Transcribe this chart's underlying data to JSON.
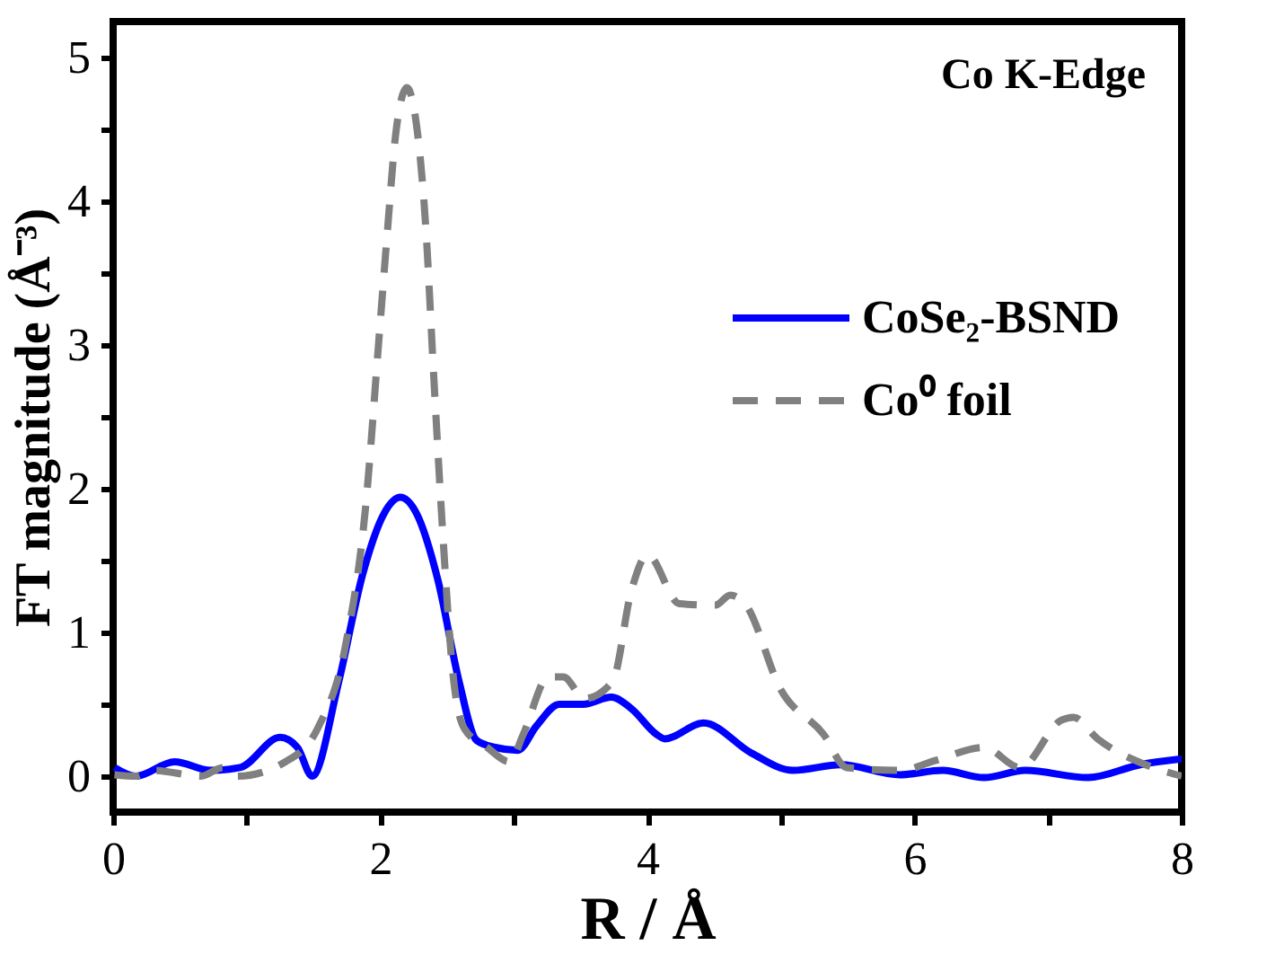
{
  "chart_data": {
    "type": "line",
    "xlabel": "R / Å",
    "ylabel": "FT magnitude (Å⁻³)",
    "annotations": [
      "Co K-Edge"
    ],
    "xlim": [
      0,
      8
    ],
    "ylim": [
      -0.25,
      5.25
    ],
    "xticks": [
      0,
      {
        "value": 1,
        "label": null
      },
      2,
      {
        "value": 3,
        "label": null
      },
      4,
      {
        "value": 5,
        "label": null
      },
      6,
      {
        "value": 7,
        "label": null
      },
      8
    ],
    "yticks": [
      0,
      {
        "value": 0.5,
        "label": null
      },
      1,
      {
        "value": 1.5,
        "label": null
      },
      2,
      {
        "value": 2.5,
        "label": null
      },
      3,
      {
        "value": 3.5,
        "label": null
      },
      4,
      {
        "value": 4.5,
        "label": null
      },
      5
    ],
    "legend": "right",
    "grid": false,
    "series": [
      {
        "name": "CoSe₂-BSND",
        "color": "#0000ff",
        "line_style": "solid",
        "x": [
          0.01,
          0.17,
          0.46,
          0.73,
          0.95,
          1.25,
          1.38,
          1.49,
          1.69,
          1.87,
          2.03,
          2.15,
          2.27,
          2.43,
          2.59,
          2.72,
          2.86,
          3.03,
          3.17,
          3.34,
          3.52,
          3.73,
          3.88,
          4.07,
          4.13,
          4.42,
          4.78,
          5.09,
          5.45,
          5.89,
          6.21,
          6.52,
          6.83,
          7.3,
          7.69,
          8.0
        ],
        "values": [
          0.06,
          0.0,
          0.1,
          0.04,
          0.06,
          0.27,
          0.2,
          0.0,
          0.66,
          1.41,
          1.83,
          1.94,
          1.83,
          1.37,
          0.66,
          0.25,
          0.2,
          0.18,
          0.35,
          0.5,
          0.5,
          0.55,
          0.47,
          0.29,
          0.26,
          0.37,
          0.16,
          0.04,
          0.08,
          0.01,
          0.04,
          -0.01,
          0.04,
          -0.01,
          0.08,
          0.12
        ]
      },
      {
        "name": "Co⁰ foil",
        "color": "#808080",
        "line_style": "dashed",
        "x": [
          0.01,
          0.17,
          0.3,
          0.66,
          0.82,
          0.93,
          1.29,
          1.53,
          1.74,
          1.89,
          1.99,
          2.05,
          2.12,
          2.2,
          2.27,
          2.34,
          2.4,
          2.47,
          2.54,
          2.63,
          2.8,
          2.97,
          3.07,
          3.26,
          3.37,
          3.53,
          3.74,
          3.88,
          4.0,
          4.24,
          4.51,
          4.62,
          4.73,
          5.0,
          5.32,
          5.49,
          5.89,
          6.16,
          6.52,
          6.79,
          7.1,
          7.19,
          7.37,
          7.73,
          8.0
        ],
        "values": [
          0.01,
          0.0,
          0.04,
          0.0,
          0.06,
          0.0,
          0.1,
          0.33,
          0.91,
          1.87,
          3.04,
          3.75,
          4.5,
          4.79,
          4.54,
          3.83,
          2.79,
          1.66,
          0.75,
          0.33,
          0.2,
          0.1,
          0.29,
          0.69,
          0.69,
          0.54,
          0.66,
          1.29,
          1.54,
          1.2,
          1.19,
          1.26,
          1.2,
          0.6,
          0.29,
          0.06,
          0.04,
          0.11,
          0.2,
          0.06,
          0.39,
          0.41,
          0.26,
          0.08,
          0.0
        ]
      }
    ]
  }
}
